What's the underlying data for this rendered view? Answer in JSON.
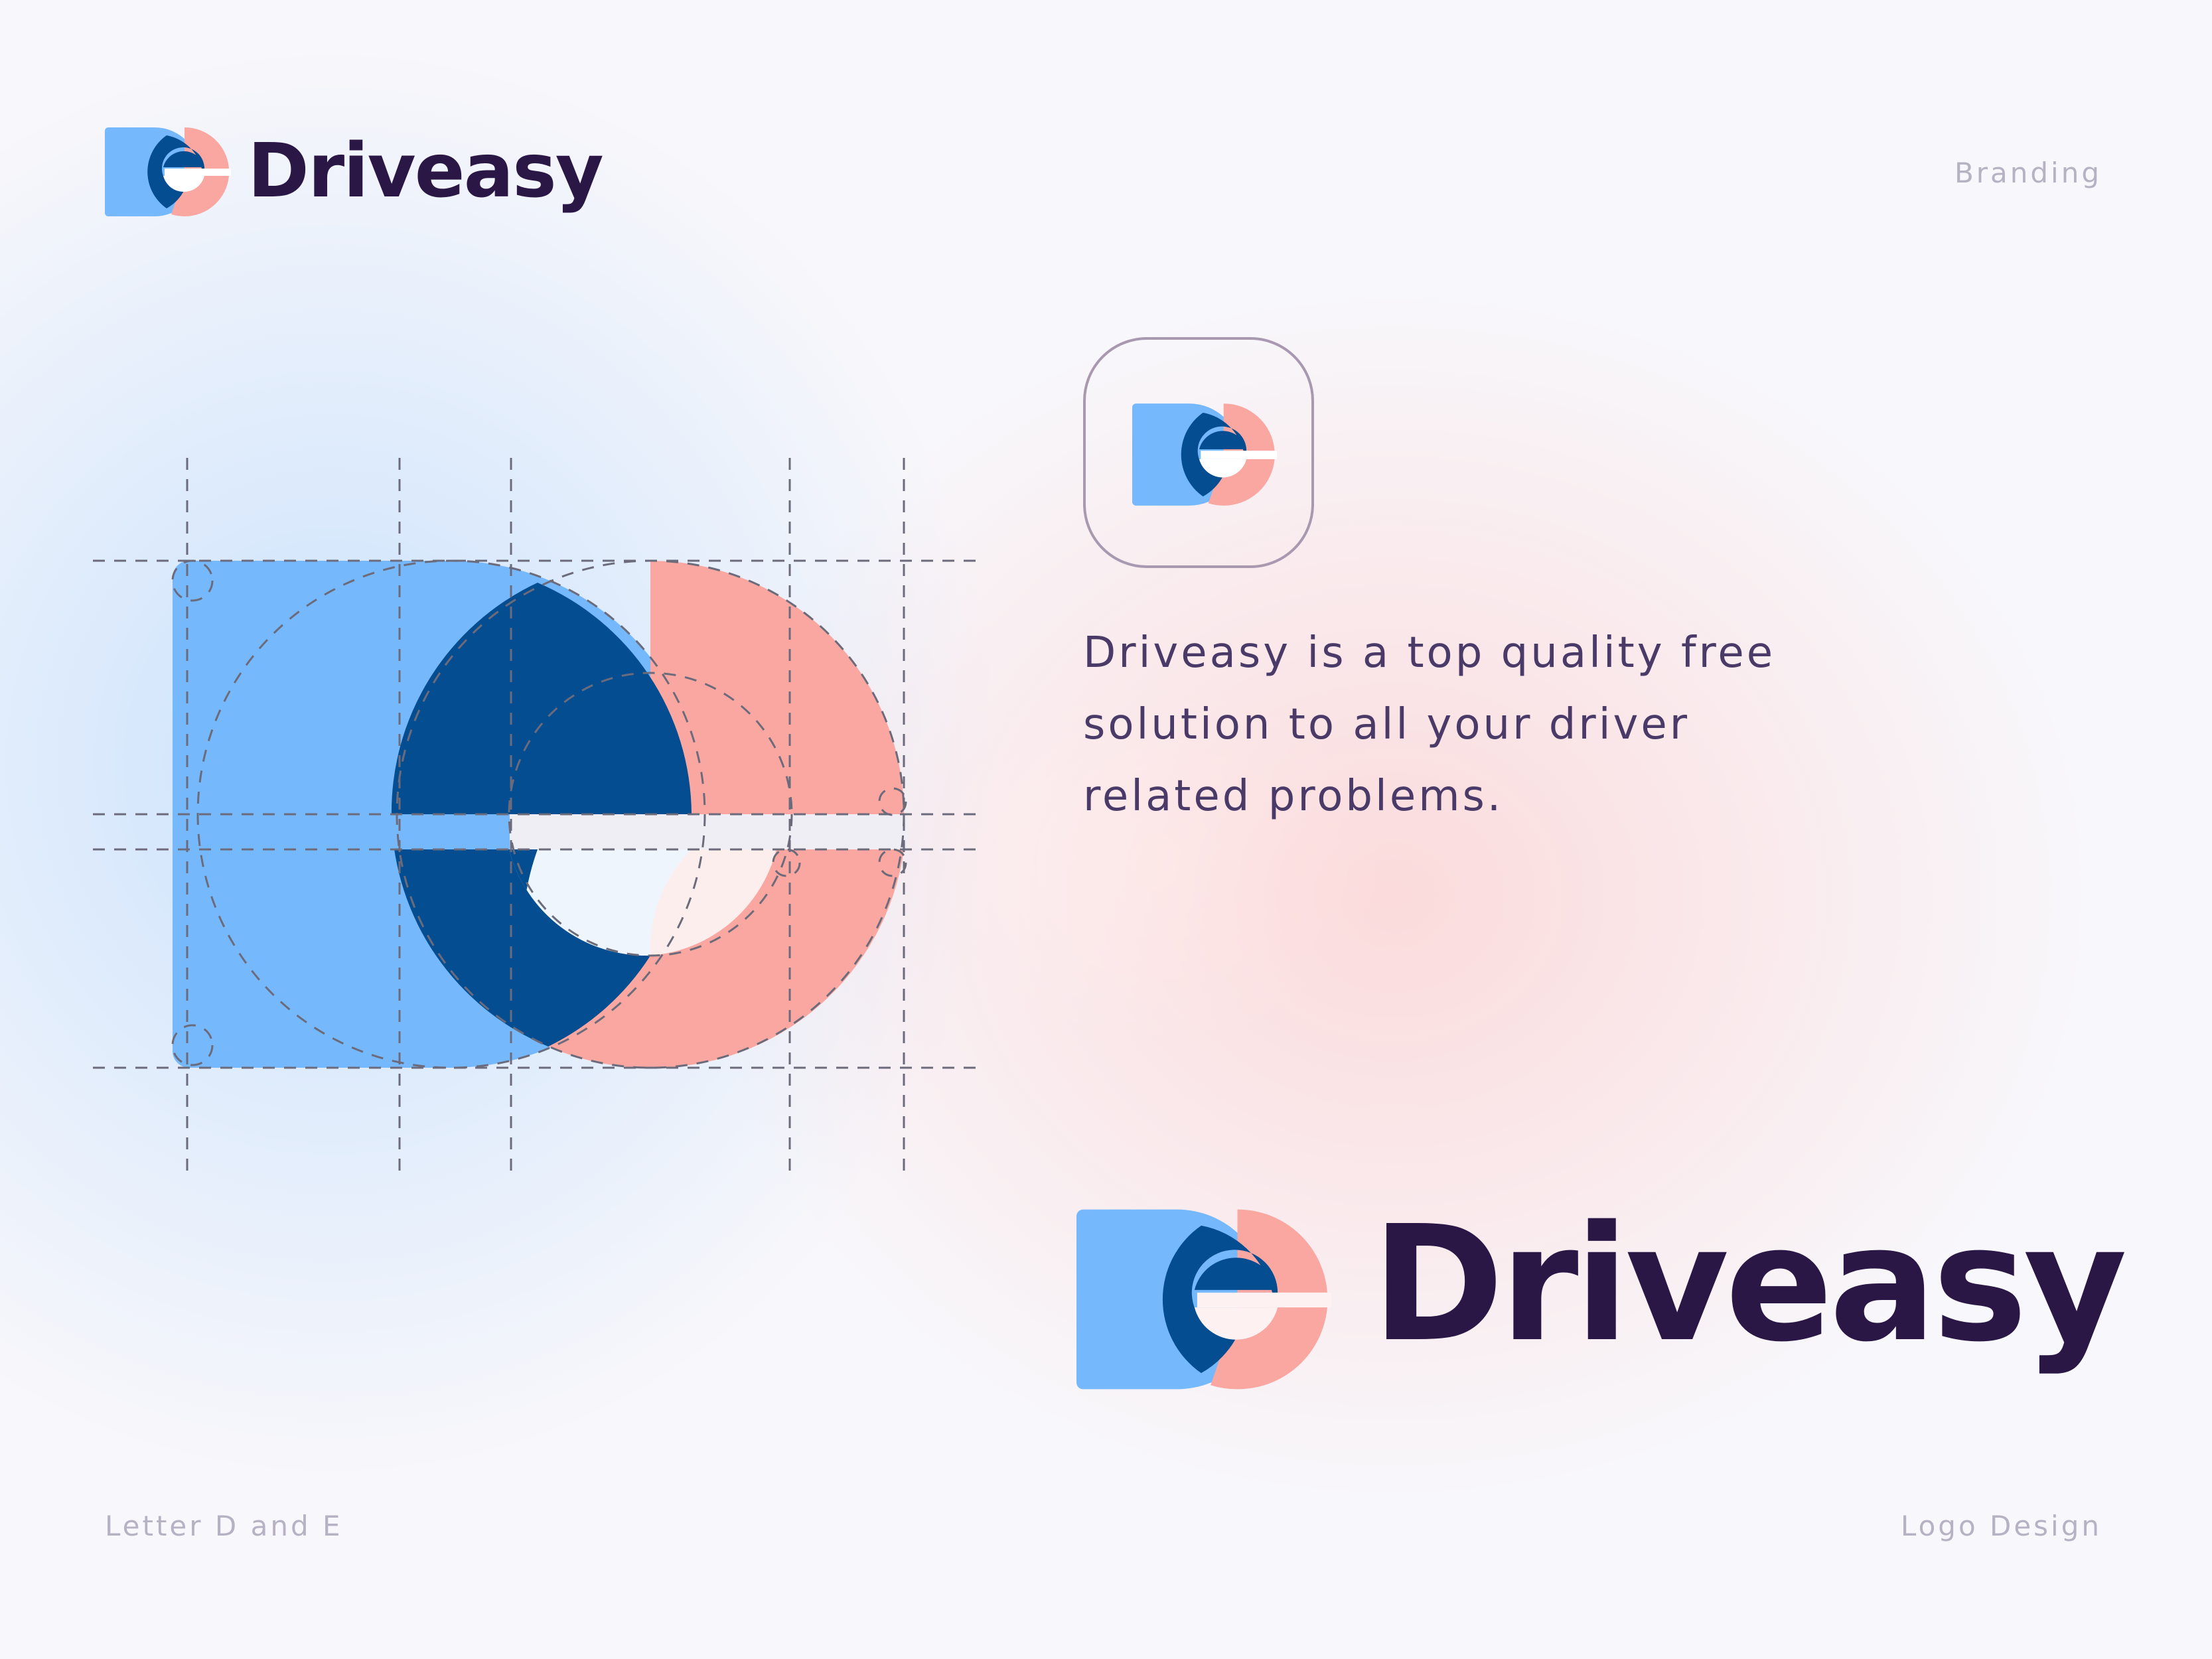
{
  "brand": {
    "name": "Driveasy",
    "colors": {
      "light_blue": "#76b8fc",
      "dark_blue": "#054d91",
      "pink": "#f9a7a0",
      "text_dark": "#2a1746",
      "text_muted": "#b6b2c4",
      "guide_line": "#6b6b7b"
    }
  },
  "header": {
    "logo_text": "Driveasy",
    "tag": "Branding"
  },
  "description": {
    "line1": "Driveasy is a top quality free",
    "line2": "solution to all your driver",
    "line3": "related problems."
  },
  "footer": {
    "left": "Letter D and E",
    "right": "Logo Design"
  },
  "main_logo": {
    "text": "Driveasy"
  }
}
